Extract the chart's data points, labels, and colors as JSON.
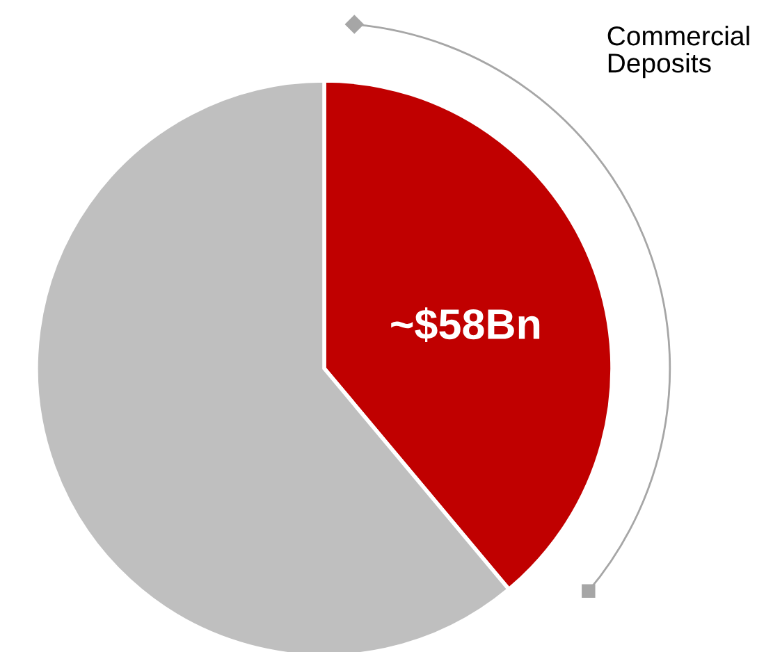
{
  "chart_data": {
    "type": "pie",
    "categories": [
      "Commercial Deposits",
      null
    ],
    "values": [
      58,
      91
    ],
    "colors": [
      "#c00000",
      "#bfbfbf"
    ],
    "value_labels": [
      "~$58Bn",
      null
    ],
    "legend": false
  }
}
